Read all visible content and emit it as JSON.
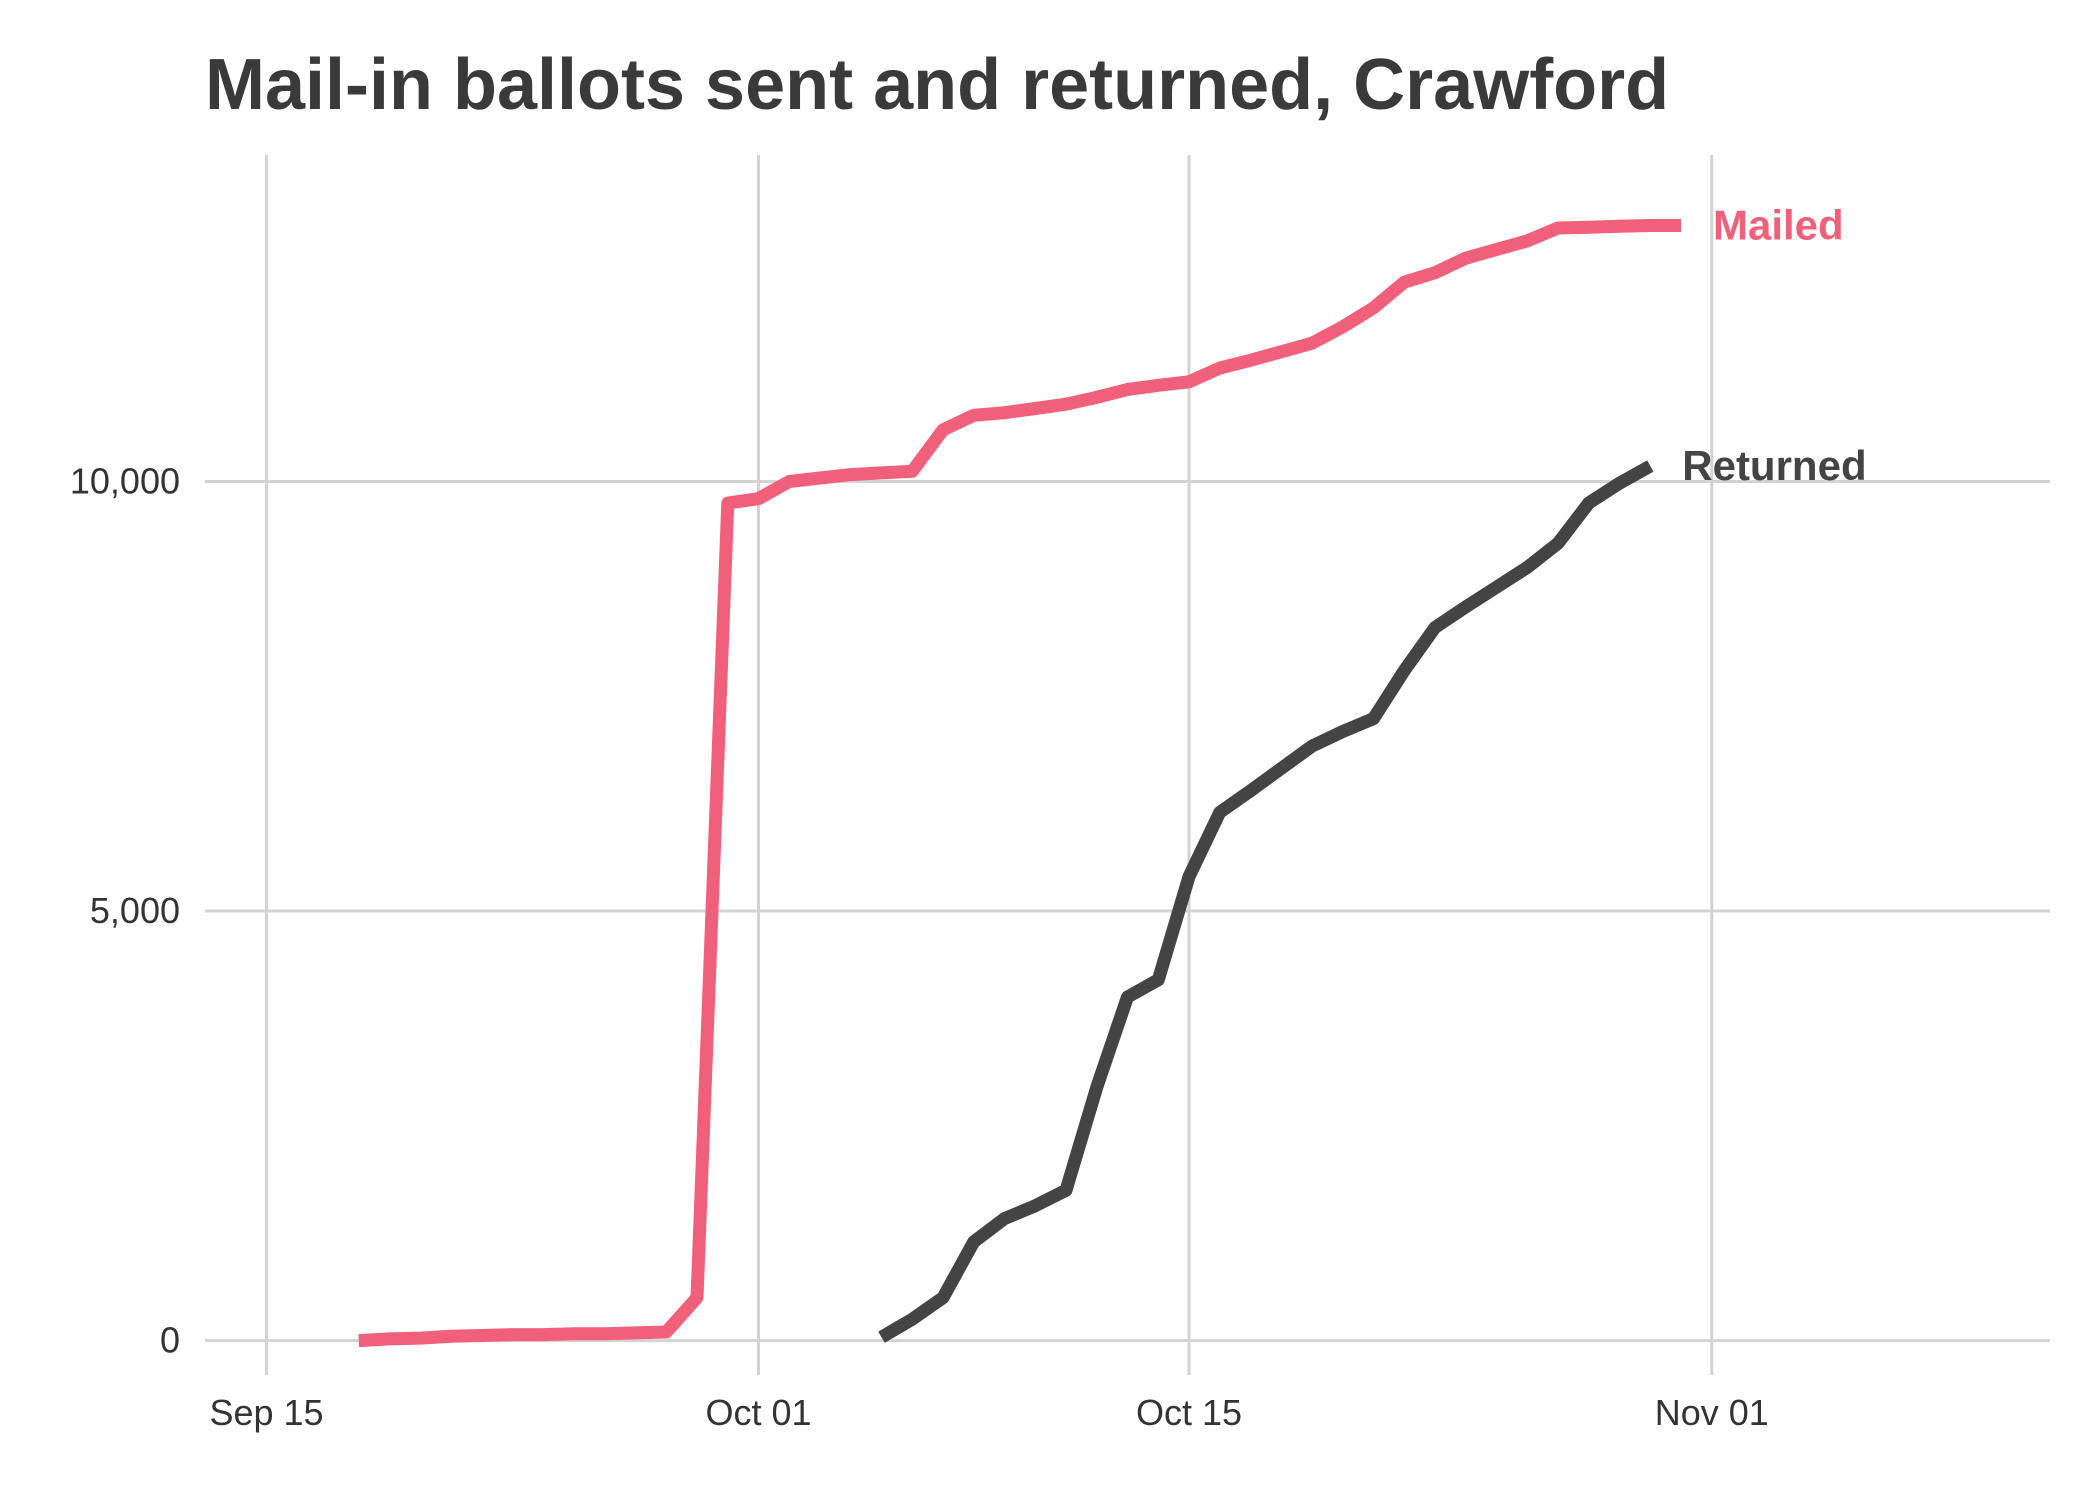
{
  "chart_data": {
    "type": "line",
    "title": "Mail-in ballots sent and returned, Crawford",
    "xlabel": "",
    "ylabel": "",
    "x_axis": {
      "type": "date",
      "range": [
        "2020-09-13",
        "2020-11-12"
      ],
      "ticks": [
        {
          "value": "2020-09-15",
          "label": "Sep 15"
        },
        {
          "value": "2020-10-01",
          "label": "Oct 01"
        },
        {
          "value": "2020-10-15",
          "label": "Oct 15"
        },
        {
          "value": "2020-11-01",
          "label": "Nov 01"
        }
      ]
    },
    "y_axis": {
      "range": [
        -400,
        13800
      ],
      "ticks": [
        {
          "value": 0,
          "label": "0"
        },
        {
          "value": 5000,
          "label": "5,000"
        },
        {
          "value": 10000,
          "label": "10,000"
        }
      ]
    },
    "grid": true,
    "legend": "direct labels at line ends",
    "series": [
      {
        "name": "Mailed",
        "color": "#f0607a",
        "points": [
          [
            "2020-09-18",
            0
          ],
          [
            "2020-09-19",
            20
          ],
          [
            "2020-09-20",
            30
          ],
          [
            "2020-09-21",
            50
          ],
          [
            "2020-09-22",
            60
          ],
          [
            "2020-09-23",
            70
          ],
          [
            "2020-09-24",
            70
          ],
          [
            "2020-09-25",
            80
          ],
          [
            "2020-09-26",
            80
          ],
          [
            "2020-09-27",
            90
          ],
          [
            "2020-09-28",
            100
          ],
          [
            "2020-09-29",
            500
          ],
          [
            "2020-09-30",
            9750
          ],
          [
            "2020-10-01",
            9800
          ],
          [
            "2020-10-02",
            10000
          ],
          [
            "2020-10-03",
            10040
          ],
          [
            "2020-10-04",
            10080
          ],
          [
            "2020-10-05",
            10100
          ],
          [
            "2020-10-06",
            10120
          ],
          [
            "2020-10-07",
            10600
          ],
          [
            "2020-10-08",
            10770
          ],
          [
            "2020-10-09",
            10800
          ],
          [
            "2020-10-10",
            10850
          ],
          [
            "2020-10-11",
            10900
          ],
          [
            "2020-10-12",
            10980
          ],
          [
            "2020-10-13",
            11070
          ],
          [
            "2020-10-14",
            11120
          ],
          [
            "2020-10-15",
            11160
          ],
          [
            "2020-10-16",
            11320
          ],
          [
            "2020-10-17",
            11410
          ],
          [
            "2020-10-18",
            11510
          ],
          [
            "2020-10-19",
            11610
          ],
          [
            "2020-10-20",
            11800
          ],
          [
            "2020-10-21",
            12020
          ],
          [
            "2020-10-22",
            12320
          ],
          [
            "2020-10-23",
            12430
          ],
          [
            "2020-10-24",
            12600
          ],
          [
            "2020-10-25",
            12700
          ],
          [
            "2020-10-26",
            12800
          ],
          [
            "2020-10-27",
            12950
          ],
          [
            "2020-10-28",
            12960
          ],
          [
            "2020-10-29",
            12970
          ],
          [
            "2020-10-30",
            12980
          ],
          [
            "2020-10-31",
            12980
          ]
        ]
      },
      {
        "name": "Returned",
        "color": "#444444",
        "points": [
          [
            "2020-10-05",
            40
          ],
          [
            "2020-10-06",
            250
          ],
          [
            "2020-10-07",
            500
          ],
          [
            "2020-10-08",
            1150
          ],
          [
            "2020-10-09",
            1420
          ],
          [
            "2020-10-10",
            1570
          ],
          [
            "2020-10-11",
            1750
          ],
          [
            "2020-10-12",
            2950
          ],
          [
            "2020-10-13",
            4000
          ],
          [
            "2020-10-14",
            4200
          ],
          [
            "2020-10-15",
            5400
          ],
          [
            "2020-10-16",
            6150
          ],
          [
            "2020-10-17",
            6400
          ],
          [
            "2020-10-18",
            6660
          ],
          [
            "2020-10-19",
            6920
          ],
          [
            "2020-10-20",
            7090
          ],
          [
            "2020-10-21",
            7240
          ],
          [
            "2020-10-22",
            7800
          ],
          [
            "2020-10-23",
            8300
          ],
          [
            "2020-10-24",
            8540
          ],
          [
            "2020-10-25",
            8770
          ],
          [
            "2020-10-26",
            9000
          ],
          [
            "2020-10-27",
            9280
          ],
          [
            "2020-10-28",
            9750
          ],
          [
            "2020-10-29",
            9980
          ],
          [
            "2020-10-30",
            10180
          ]
        ]
      }
    ]
  }
}
